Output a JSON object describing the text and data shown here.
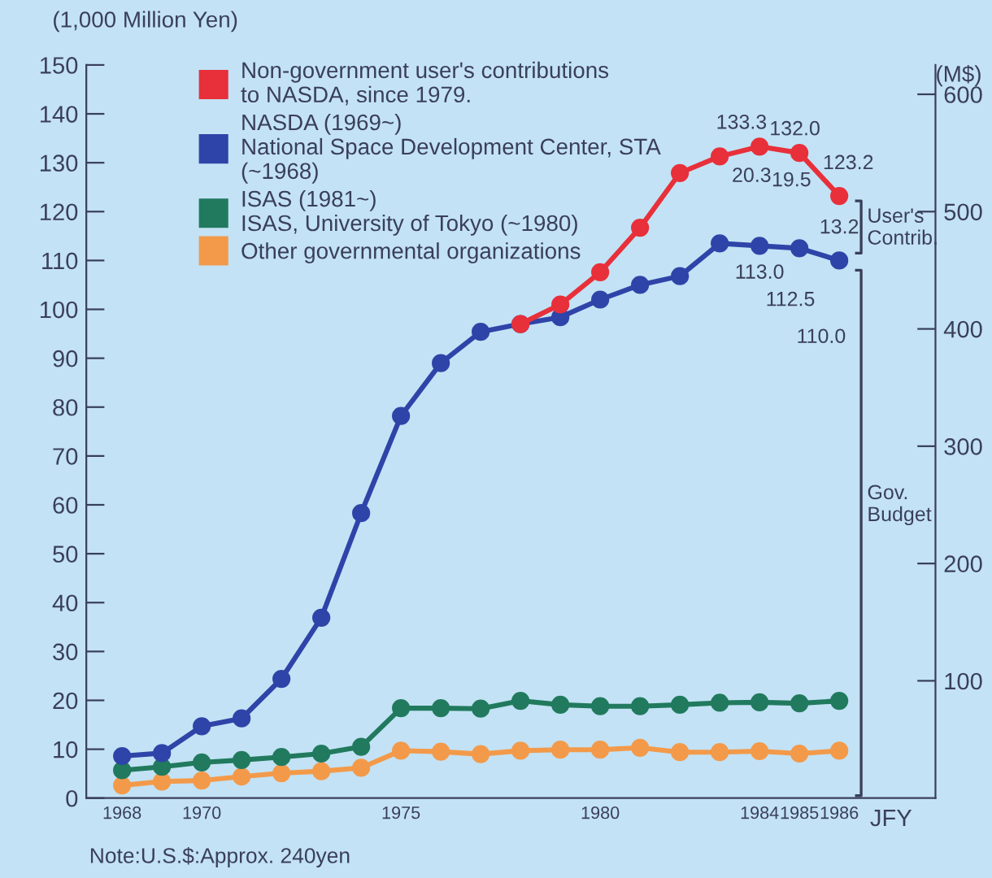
{
  "chart_data": {
    "type": "line",
    "ylabel": "(1,000 Million Yen)",
    "xlabel": "JFY",
    "y2label": "(M$)",
    "categories": [
      "1968",
      null,
      "1970",
      null,
      null,
      null,
      null,
      "1975",
      null,
      null,
      null,
      null,
      "1980",
      null,
      null,
      null,
      "1984",
      "1985",
      "1986"
    ],
    "series": [
      {
        "name": "Non-government user's contributions\nto NASDA, since 1979.",
        "color": "#e8303a",
        "values": [
          null,
          null,
          null,
          null,
          null,
          null,
          null,
          null,
          null,
          null,
          97.0,
          101.0,
          107.6,
          116.7,
          127.9,
          131.3,
          133.3,
          132.0,
          123.2
        ],
        "value_labels": [
          null,
          null,
          null,
          null,
          null,
          null,
          null,
          null,
          null,
          null,
          null,
          null,
          null,
          null,
          null,
          null,
          "133.3",
          "132.0",
          "123.2"
        ]
      },
      {
        "name": "NASDA (1969~)\nNational Space Development Center, STA\n(~1968)",
        "color": "#2f44a8",
        "values": [
          8.6,
          9.2,
          14.7,
          16.3,
          24.4,
          36.9,
          58.3,
          78.2,
          89.0,
          95.4,
          97.0,
          98.4,
          102.0,
          105.0,
          106.8,
          113.5,
          113.0,
          112.5,
          110.0
        ],
        "value_labels": [
          null,
          null,
          null,
          null,
          null,
          null,
          null,
          null,
          null,
          null,
          null,
          null,
          null,
          null,
          null,
          null,
          "113.0",
          "112.5",
          "110.0"
        ]
      },
      {
        "name": "ISAS (1981~)\nISAS, University of Tokyo (~1980)",
        "color": "#217a5e",
        "values": [
          5.7,
          6.4,
          7.3,
          7.8,
          8.4,
          9.1,
          10.5,
          18.4,
          18.4,
          18.3,
          19.9,
          19.1,
          18.8,
          18.8,
          19.1,
          19.5,
          19.6,
          19.4,
          19.9
        ]
      },
      {
        "name": "Other governmental organizations",
        "color": "#f39a4a",
        "values": [
          2.6,
          3.4,
          3.6,
          4.4,
          5.1,
          5.5,
          6.2,
          9.7,
          9.5,
          9.0,
          9.7,
          9.9,
          9.9,
          10.3,
          9.4,
          9.4,
          9.6,
          9.1,
          9.7
        ]
      }
    ],
    "ylim": [
      0,
      150
    ],
    "yticks": [
      0,
      10,
      20,
      30,
      40,
      50,
      60,
      70,
      80,
      90,
      100,
      110,
      120,
      130,
      140,
      150
    ],
    "y2lim": [
      0,
      625
    ],
    "y2ticks": [
      100,
      200,
      300,
      400,
      500,
      600
    ],
    "marker": "circle",
    "line_style": "solid",
    "grid": false,
    "legend": "top left",
    "annotations": [
      "20.3",
      "19.5",
      "13.2",
      "User's\nContrib.",
      "Gov.\nBudget",
      "Note:U.S.$:Approx. 240yen"
    ]
  }
}
